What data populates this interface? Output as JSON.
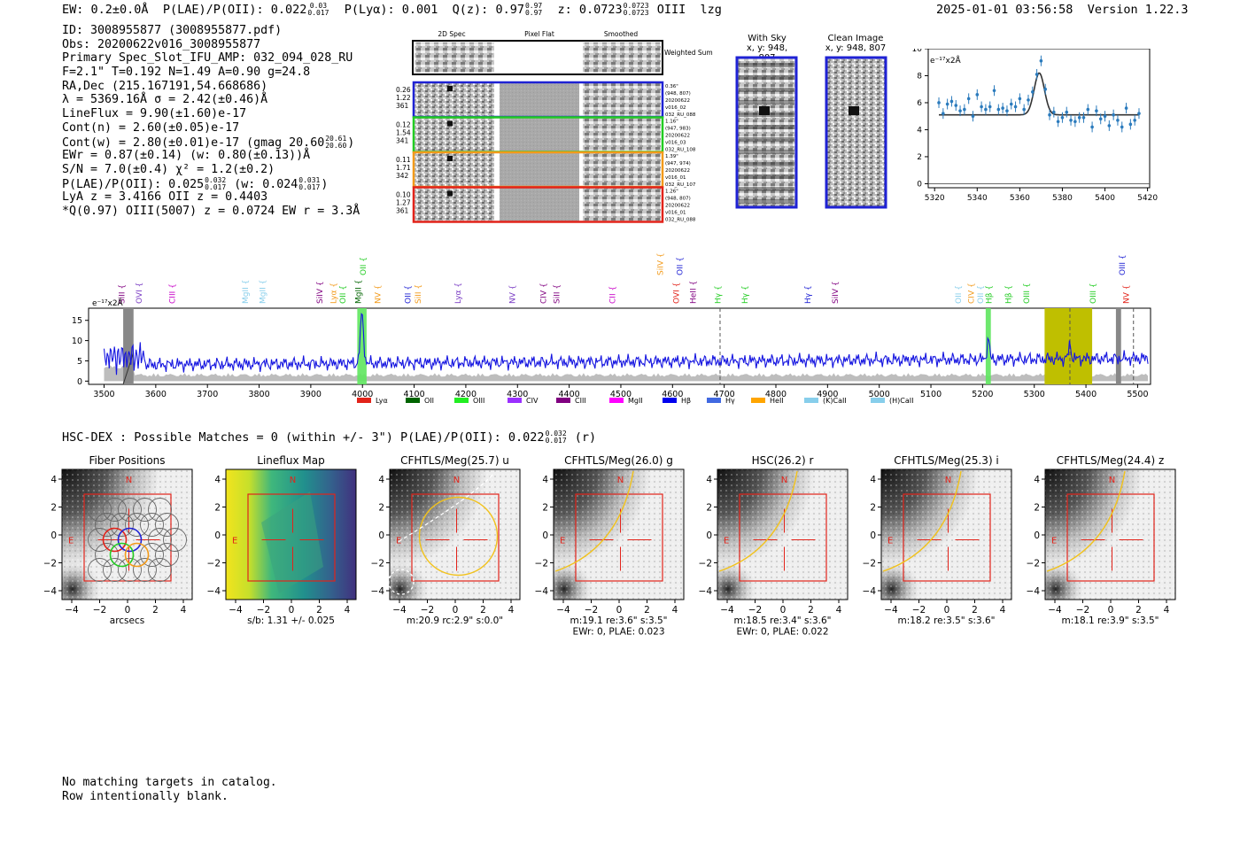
{
  "header": {
    "left": {
      "ew": "EW: 0.2±0.0Å",
      "plae_label": "P(LAE)/P(OII): 0.022",
      "plae_hi": "0.03",
      "plae_lo": "0.017",
      "plya": "P(Lyα): 0.001",
      "q_label": "Q(z): 0.97",
      "q_hi": "0.97",
      "q_lo": "0.97",
      "z_label": "z: 0.0723",
      "z_hi": "0.0723",
      "z_lo": "0.0723",
      "line": "OIII",
      "flag": "lzg"
    },
    "timestamp": "2025-01-01 03:56:58",
    "version": "Version 1.22.3"
  },
  "info": {
    "id": "ID: 3008955877 (3008955877.pdf)",
    "obs": "Obs: 20200622v016_3008955877",
    "primary": "Primary Spec_Slot_IFU_AMP: 032_094_028_RU",
    "fparams": "F=2.1\"  T=0.192  N=1.49  A=0.90  g=24.8",
    "radec": "RA,Dec (215.167191,54.668686)",
    "lambda": "λ = 5369.16Å  σ = 2.42(±0.46)Å",
    "lineflux": "LineFlux = 9.90(±1.60)e-17",
    "contn": "Cont(n) = 2.60(±0.05)e-17",
    "contw": "Cont(w) = 2.80(±0.01)e-17 (gmag 20.60",
    "contw_hi": "20.61",
    "contw_lo": "20.60",
    "contw_close": ")",
    "ewr": "EWr = 0.87(±0.14) (w: 0.80(±0.13))Å",
    "sn": "S/N = 7.0(±0.4)  χ² = 1.2(±0.2)",
    "plae": "P(LAE)/P(OII): 0.025",
    "plae_hi": "0.032",
    "plae_lo": "0.017",
    "plae_w": "(w: 0.024",
    "plae_w_hi": "0.031",
    "plae_w_lo": "0.017",
    "plae_close": ")",
    "lya": "LyA z = 3.4166  OII z = 0.4403",
    "q": "*Q(0.97) OIII(5007) z = 0.0724  EW r = 3.3Å"
  },
  "cutouts": {
    "col_2d": "2D Spec",
    "col_flat": "Pixel Flat",
    "col_smooth": "Smoothed",
    "weighted": "Weighted Sum",
    "rows": [
      {
        "vals": [
          "0.26",
          "1.22",
          "361"
        ],
        "meta": [
          "0.36\"",
          "(948, 807)",
          "20200622",
          "v016_02",
          "032_RU_088"
        ],
        "color": "#1f22d4"
      },
      {
        "vals": [
          "0.12",
          "1.54",
          "341"
        ],
        "meta": [
          "1.16\"",
          "(947, 983)",
          "20200622",
          "v016_03",
          "032_RU_108"
        ],
        "color": "#22cc22"
      },
      {
        "vals": [
          "0.11",
          "1.71",
          "342"
        ],
        "meta": [
          "1.39\"",
          "(947, 974)",
          "20200622",
          "v016_01",
          "032_RU_107"
        ],
        "color": "#f29a1a"
      },
      {
        "vals": [
          "0.10",
          "1.27",
          "361"
        ],
        "meta": [
          "1.26\"",
          "(948, 807)",
          "20200622",
          "v016_01",
          "032_RU_088"
        ],
        "color": "#e2231a"
      }
    ],
    "with_sky": "With Sky",
    "clean": "Clean Image",
    "xy": "x, y: 948, 807"
  },
  "zoom_chart": {
    "unit": "e⁻¹⁷x2Å",
    "xticks": [
      5320,
      5340,
      5360,
      5380,
      5400,
      5420
    ],
    "yticks": [
      0,
      2,
      4,
      6,
      8,
      10
    ]
  },
  "chart_data": [
    {
      "type": "scatter",
      "xlim": [
        5317,
        5421
      ],
      "ylim": [
        -0.3,
        10
      ],
      "ylabel": "e⁻¹⁷x2Å",
      "grid": false,
      "points_x": [
        5322,
        5324,
        5326,
        5328,
        5330,
        5332,
        5334,
        5336,
        5338,
        5340,
        5342,
        5344,
        5346,
        5348,
        5350,
        5352,
        5354,
        5356,
        5358,
        5360,
        5362,
        5364,
        5366,
        5368,
        5370,
        5372,
        5374,
        5376,
        5378,
        5380,
        5382,
        5384,
        5386,
        5388,
        5390,
        5392,
        5394,
        5396,
        5398,
        5400,
        5402,
        5404,
        5406,
        5408,
        5410,
        5412,
        5414,
        5416
      ],
      "points_y": [
        6.0,
        5.2,
        5.9,
        6.1,
        5.8,
        5.4,
        5.5,
        6.3,
        5.0,
        6.6,
        5.7,
        5.5,
        5.7,
        6.9,
        5.5,
        5.6,
        5.4,
        5.9,
        5.7,
        6.3,
        5.5,
        6.2,
        6.8,
        8.1,
        9.1,
        7.0,
        5.1,
        5.3,
        4.6,
        4.9,
        5.3,
        4.7,
        4.6,
        4.9,
        4.9,
        5.5,
        4.2,
        5.4,
        4.8,
        5.0,
        4.3,
        5.1,
        4.7,
        4.2,
        5.6,
        4.4,
        4.7,
        5.2
      ],
      "fit": {
        "continuum": 5.1,
        "peak": 8.2,
        "center": 5369.16,
        "sigma": 2.42
      }
    },
    {
      "type": "line",
      "xlim": [
        3470,
        5525
      ],
      "ylim": [
        -0.8,
        18
      ],
      "ylabel": "e⁻¹⁷x2Å",
      "xticks": [
        3500,
        3600,
        3700,
        3800,
        3900,
        4000,
        4100,
        4200,
        4300,
        4400,
        4500,
        4600,
        4700,
        4800,
        4900,
        5000,
        5100,
        5200,
        5300,
        5400,
        5500
      ],
      "yticks": [
        0,
        5,
        10,
        15
      ],
      "line_labels": [
        {
          "name": "SiII",
          "x": 3534,
          "c": "#800080"
        },
        {
          "name": "OVI",
          "x": 3568,
          "c": "#7a3cc4"
        },
        {
          "name": "CIII",
          "x": 3632,
          "c": "#c800c8"
        },
        {
          "name": "MgII",
          "x": 3773,
          "c": "#87ceeb"
        },
        {
          "name": "MgII",
          "x": 3807,
          "c": "#87ceeb"
        },
        {
          "name": "SiIV",
          "x": 3917,
          "c": "#800080"
        },
        {
          "name": "Lyα",
          "x": 3944,
          "c": "#f29a1a"
        },
        {
          "name": "OII",
          "x": 3962,
          "c": "#22cc22"
        },
        {
          "name": "MgII",
          "x": 3992,
          "c": "#006400"
        },
        {
          "name": "NV",
          "x": 4030,
          "c": "#f29a1a"
        },
        {
          "name": "OII",
          "x": 4088,
          "c": "#1f22d4"
        },
        {
          "name": "SiII",
          "x": 4108,
          "c": "#f29a1a"
        },
        {
          "name": "Lyα",
          "x": 4185,
          "c": "#7a3cc4"
        },
        {
          "name": "NV",
          "x": 4290,
          "c": "#7a3cc4"
        },
        {
          "name": "CIV",
          "x": 4350,
          "c": "#800080"
        },
        {
          "name": "SiII",
          "x": 4376,
          "c": "#800080"
        },
        {
          "name": "CII",
          "x": 4484,
          "c": "#c800c8"
        },
        {
          "name": "OVI",
          "x": 4607,
          "c": "#e2231a"
        },
        {
          "name": "HeII",
          "x": 4640,
          "c": "#800080"
        },
        {
          "name": "Hγ",
          "x": 4688,
          "c": "#22cc22"
        },
        {
          "name": "Hγ",
          "x": 4740,
          "c": "#22cc22"
        },
        {
          "name": "Hγ",
          "x": 4862,
          "c": "#1f22d4"
        },
        {
          "name": "SiIV",
          "x": 4915,
          "c": "#800080"
        },
        {
          "name": "OII",
          "x": 5153,
          "c": "#87ceeb"
        },
        {
          "name": "CIV",
          "x": 5178,
          "c": "#f29a1a"
        },
        {
          "name": "OII",
          "x": 5196,
          "c": "#87ceeb"
        },
        {
          "name": "Hβ",
          "x": 5212,
          "c": "#22cc22"
        },
        {
          "name": "Hβ",
          "x": 5250,
          "c": "#22cc22"
        },
        {
          "name": "OIII",
          "x": 5285,
          "c": "#22cc22"
        },
        {
          "name": "OIII",
          "x": 5414,
          "c": "#22cc22"
        },
        {
          "name": "NV",
          "x": 5478,
          "c": "#e2231a"
        }
      ],
      "upper_labels": [
        {
          "name": "OII",
          "x": 4001,
          "c": "#22cc22"
        },
        {
          "name": "SiIV",
          "x": 4576,
          "c": "#f29a1a"
        },
        {
          "name": "OII",
          "x": 4614,
          "c": "#1f22d4"
        },
        {
          "name": "OIII",
          "x": 5470,
          "c": "#1f22d4"
        }
      ]
    }
  ],
  "legend": [
    {
      "name": "Lyα",
      "c": "#e2231a"
    },
    {
      "name": "OII",
      "c": "#006400"
    },
    {
      "name": "OIII",
      "c": "#22ee22"
    },
    {
      "name": "CIV",
      "c": "#9b30ff"
    },
    {
      "name": "CIII",
      "c": "#800080"
    },
    {
      "name": "MgII",
      "c": "#ff00ff"
    },
    {
      "name": "Hβ",
      "c": "#0000ee"
    },
    {
      "name": "Hγ",
      "c": "#4169e1"
    },
    {
      "name": "HeII",
      "c": "#ffa500"
    },
    {
      "name": "(K)CaII",
      "c": "#87ceeb"
    },
    {
      "name": "(H)CaII",
      "c": "#87ceeb"
    }
  ],
  "hsc": {
    "line": "HSC-DEX : Possible Matches = 0 (within +/- 3\")  P(LAE)/P(OII): 0.022",
    "hi": "0.032",
    "lo": "0.017",
    "tail": "(r)"
  },
  "stamps": [
    {
      "title": "Fiber Positions",
      "sub": [
        "arcsecs"
      ]
    },
    {
      "title": "Lineflux Map",
      "sub": [
        "s/b: 1.31 +/- 0.025"
      ]
    },
    {
      "title": "CFHTLS/Meg(25.7) u",
      "sub": [
        "m:20.9 rc:2.9\"  s:0.0\""
      ]
    },
    {
      "title": "CFHTLS/Meg(26.0) g",
      "sub": [
        "m:19.1  re:3.6\"  s:3.5\"",
        "EWr: 0, PLAE: 0.023"
      ]
    },
    {
      "title": "HSC(26.2) r",
      "sub": [
        "m:18.5  re:3.4\"  s:3.6\"",
        "EWr: 0, PLAE: 0.022"
      ]
    },
    {
      "title": "CFHTLS/Meg(25.3) i",
      "sub": [
        "m:18.2  re:3.5\"  s:3.6\""
      ]
    },
    {
      "title": "CFHTLS/Meg(24.4) z",
      "sub": [
        "m:18.1  re:3.9\"  s:3.5\""
      ]
    }
  ],
  "stamp_axes": {
    "ticks": [
      "−4",
      "−2",
      "0",
      "2",
      "4"
    ],
    "n": "N",
    "e": "E"
  },
  "footer": {
    "line1": "No matching targets in catalog.",
    "line2": "Row intentionally blank."
  }
}
